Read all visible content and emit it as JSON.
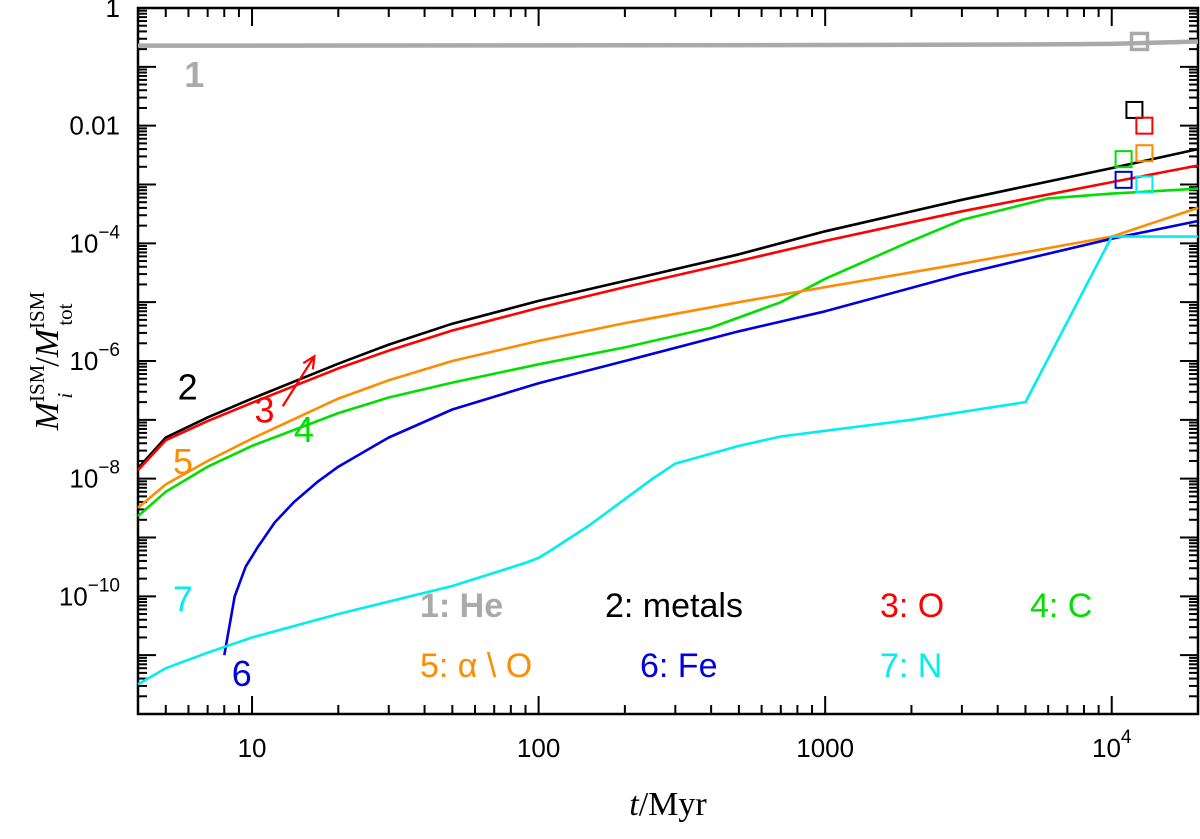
{
  "chart_data": {
    "type": "line",
    "title": "",
    "xlabel": "t / Myr",
    "xlabel_var": "t",
    "xlabel_unit": "/Myr",
    "ylabel": "M_i^ISM / M_tot^ISM",
    "ylabel_var_main": "M",
    "ylabel_sub_i": "i",
    "ylabel_sup": "ISM",
    "ylabel_slash": "/",
    "ylabel_sub_tot": "tot",
    "xscale": "log",
    "yscale": "log",
    "xlim": [
      4,
      20000
    ],
    "ylim": [
      1e-12,
      1
    ],
    "x_ticks": [
      {
        "value": 10,
        "label": "10"
      },
      {
        "value": 100,
        "label": "100"
      },
      {
        "value": 1000,
        "label": "1000"
      },
      {
        "value": 10000,
        "label_base": "10",
        "label_exp": "4"
      }
    ],
    "y_ticks": [
      {
        "value": 1,
        "label_plain": "1"
      },
      {
        "value": 0.01,
        "label_plain": "0.01"
      },
      {
        "value": 0.0001,
        "label_base": "10",
        "label_exp": "−4"
      },
      {
        "value": 1e-06,
        "label_base": "10",
        "label_exp": "−6"
      },
      {
        "value": 1e-08,
        "label_base": "10",
        "label_exp": "−8"
      },
      {
        "value": 1e-10,
        "label_base": "10",
        "label_exp": "−10"
      }
    ],
    "series": [
      {
        "id": "1",
        "name": "He",
        "color": "#aaaaaa",
        "x": [
          4,
          10,
          100,
          1000,
          5000,
          10000,
          20000
        ],
        "y": [
          0.23,
          0.23,
          0.231,
          0.235,
          0.24,
          0.245,
          0.27
        ],
        "marker": {
          "x": 12500,
          "y": 0.27
        }
      },
      {
        "id": "2",
        "name": "metals",
        "color": "#000000",
        "x": [
          4,
          5,
          7,
          10,
          20,
          30,
          50,
          100,
          200,
          500,
          1000,
          3000,
          10000,
          20000
        ],
        "y": [
          1.5e-08,
          5e-08,
          1.1e-07,
          2.3e-07,
          9e-07,
          1.9e-06,
          4.3e-06,
          1.05e-05,
          2.3e-05,
          6.5e-05,
          0.00016,
          0.00055,
          0.0019,
          0.004
        ],
        "marker": {
          "x": 12000,
          "y": 0.0185
        }
      },
      {
        "id": "3",
        "name": "O",
        "color": "#ff0000",
        "x": [
          4,
          5,
          7,
          10,
          20,
          30,
          50,
          100,
          200,
          500,
          1000,
          3000,
          10000,
          20000
        ],
        "y": [
          1.4e-08,
          4.5e-08,
          9.5e-08,
          1.95e-07,
          7.5e-07,
          1.5e-06,
          3.3e-06,
          8e-06,
          1.8e-05,
          5e-05,
          0.00011,
          0.00035,
          0.0011,
          0.0021
        ],
        "marker": {
          "x": 13000,
          "y": 0.01
        },
        "arrow": {
          "x1": 12.8,
          "y1": 1.7e-07,
          "x2": 16.5,
          "y2": 1.2e-06
        }
      },
      {
        "id": "4",
        "name": "C",
        "color": "#00e000",
        "x": [
          4,
          5,
          7,
          10,
          20,
          30,
          50,
          100,
          200,
          400,
          700,
          1000,
          2000,
          3000,
          6000,
          10000,
          20000
        ],
        "y": [
          2.3e-09,
          6e-09,
          1.6e-08,
          3.6e-08,
          1.3e-07,
          2.4e-07,
          4.3e-07,
          8.8e-07,
          1.7e-06,
          3.7e-06,
          1e-05,
          2.5e-05,
          0.00011,
          0.00025,
          0.00058,
          0.0007,
          0.00085
        ],
        "marker": {
          "x": 11000,
          "y": 0.0027
        }
      },
      {
        "id": "5",
        "name": "α \\ O",
        "color": "#ff8c00",
        "x": [
          4,
          5,
          7,
          10,
          20,
          30,
          50,
          100,
          200,
          500,
          1000,
          3000,
          10000,
          20000
        ],
        "y": [
          3.2e-09,
          8e-09,
          2e-08,
          4.8e-08,
          2.3e-07,
          4.7e-07,
          1e-06,
          2.2e-06,
          4.4e-06,
          1e-05,
          1.8e-05,
          4.5e-05,
          0.00013,
          0.0004
        ],
        "marker": {
          "x": 13000,
          "y": 0.0034
        }
      },
      {
        "id": "6",
        "name": "Fe",
        "color": "#0000dd",
        "x": [
          8,
          8.7,
          9.5,
          10.5,
          12,
          14,
          17,
          20,
          30,
          50,
          100,
          200,
          500,
          1000,
          3000,
          10000,
          20000
        ],
        "y": [
          1e-11,
          1e-10,
          3.2e-10,
          7e-10,
          1.8e-09,
          4e-09,
          9e-09,
          1.6e-08,
          5e-08,
          1.5e-07,
          4.2e-07,
          1e-06,
          3.2e-06,
          7e-06,
          3e-05,
          0.00012,
          0.00024
        ],
        "marker": {
          "x": 11000,
          "y": 0.0012
        }
      },
      {
        "id": "7",
        "name": "N",
        "color": "#00eeee",
        "x": [
          4,
          5,
          7,
          10,
          20,
          50,
          90,
          100,
          110,
          150,
          200,
          250,
          300,
          500,
          700,
          1000,
          2000,
          5000,
          10000,
          20000
        ],
        "y": [
          3.2e-12,
          6e-12,
          1.1e-11,
          2e-11,
          5e-11,
          1.5e-10,
          3.7e-10,
          4.5e-10,
          6e-10,
          1.6e-09,
          4.5e-09,
          1e-08,
          1.8e-08,
          3.6e-08,
          5.2e-08,
          6.5e-08,
          1e-07,
          2e-07,
          0.00013,
          0.00013
        ],
        "marker": {
          "x": 13000,
          "y": 0.001
        }
      }
    ],
    "curve_labels": [
      {
        "text": "1",
        "color": "#aaaaaa",
        "x": 5.8,
        "y": 0.045,
        "bold": true
      },
      {
        "text": "2",
        "color": "#000000",
        "x": 5.5,
        "y": 2.2e-07,
        "bold": false
      },
      {
        "text": "3",
        "color": "#ff0000",
        "x": 10.2,
        "y": 9e-08,
        "bold": false
      },
      {
        "text": "4",
        "color": "#00e000",
        "x": 14,
        "y": 4.2e-08,
        "bold": false
      },
      {
        "text": "5",
        "color": "#ff8c00",
        "x": 5.3,
        "y": 1.2e-08,
        "bold": false
      },
      {
        "text": "6",
        "color": "#0000dd",
        "x": 8.5,
        "y": 3e-12,
        "bold": false
      },
      {
        "text": "7",
        "color": "#00eeee",
        "x": 5.3,
        "y": 5.5e-11,
        "bold": false
      }
    ],
    "legend": {
      "placement": "bottom-right",
      "rows": [
        [
          {
            "text": "1: He",
            "color": "#aaaaaa",
            "bold": true
          },
          {
            "text": "2: metals",
            "color": "#000000",
            "bold": false
          },
          {
            "text": "3: O",
            "color": "#ff0000",
            "bold": false
          },
          {
            "text": "4: C",
            "color": "#00e000",
            "bold": false
          }
        ],
        [
          {
            "text": "5: α \\ O",
            "color": "#ff8c00",
            "bold": false
          },
          {
            "text": "6: Fe",
            "color": "#0000dd",
            "bold": false
          },
          {
            "text": "7: N",
            "color": "#00eeee",
            "bold": false
          }
        ]
      ]
    }
  }
}
